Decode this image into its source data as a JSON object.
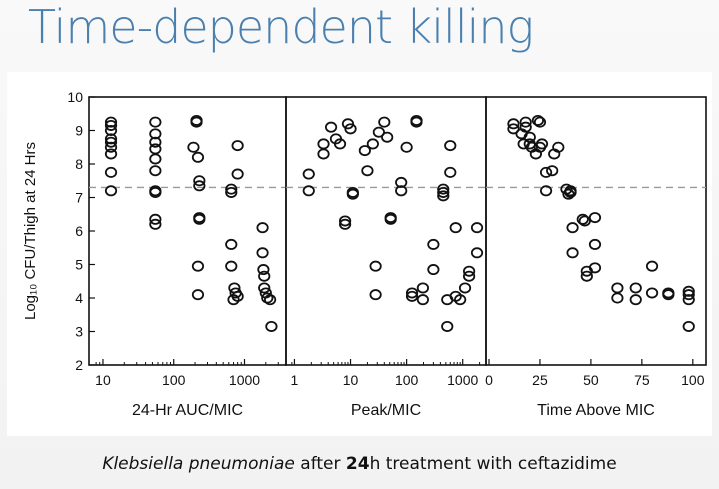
{
  "slide": {
    "title": "Time-dependent killing",
    "caption_organism": "Klebsiella pneumoniae",
    "caption_after": " after ",
    "caption_hours": "24",
    "caption_rest": "h treatment with ceftazidime"
  },
  "chart_data": {
    "type": "scatter",
    "ylabel": "Log₁₀ CFU/Thigh at 24 Hrs",
    "ylim": [
      2,
      10
    ],
    "yticks": [
      "2",
      "3",
      "4",
      "5",
      "6",
      "7",
      "8",
      "9",
      "10"
    ],
    "reference_line_y": 7.3,
    "reference_line_style": "dashed",
    "grid": false,
    "panels": [
      {
        "xlabel": "24-Hr AUC/MIC",
        "xscale": "log",
        "xlim": [
          7,
          3500
        ],
        "xticks": [
          "10",
          "100",
          "1000"
        ],
        "points": [
          [
            13,
            9.25
          ],
          [
            13,
            9.15
          ],
          [
            13,
            9.0
          ],
          [
            13,
            8.75
          ],
          [
            13,
            8.65
          ],
          [
            13,
            8.5
          ],
          [
            13,
            8.3
          ],
          [
            13,
            7.75
          ],
          [
            13,
            7.2
          ],
          [
            55,
            9.25
          ],
          [
            55,
            8.9
          ],
          [
            55,
            8.65
          ],
          [
            55,
            8.45
          ],
          [
            55,
            8.15
          ],
          [
            55,
            7.8
          ],
          [
            55,
            7.2
          ],
          [
            55,
            7.15
          ],
          [
            55,
            6.35
          ],
          [
            55,
            6.2
          ],
          [
            210,
            9.3
          ],
          [
            210,
            9.25
          ],
          [
            190,
            8.5
          ],
          [
            220,
            8.2
          ],
          [
            230,
            7.5
          ],
          [
            230,
            7.35
          ],
          [
            230,
            6.4
          ],
          [
            230,
            6.35
          ],
          [
            220,
            4.95
          ],
          [
            220,
            4.1
          ],
          [
            650,
            7.25
          ],
          [
            650,
            7.15
          ],
          [
            800,
            8.55
          ],
          [
            800,
            7.7
          ],
          [
            650,
            5.6
          ],
          [
            650,
            4.95
          ],
          [
            720,
            4.3
          ],
          [
            750,
            4.15
          ],
          [
            700,
            3.95
          ],
          [
            800,
            4.05
          ],
          [
            1800,
            6.1
          ],
          [
            1800,
            5.35
          ],
          [
            1850,
            4.85
          ],
          [
            1900,
            4.65
          ],
          [
            1900,
            4.3
          ],
          [
            2000,
            4.15
          ],
          [
            2100,
            4.0
          ],
          [
            2300,
            3.95
          ],
          [
            2400,
            3.15
          ]
        ]
      },
      {
        "xlabel": "Peak/MIC",
        "xscale": "log",
        "xlim": [
          0.8,
          2300
        ],
        "xticks": [
          "1",
          "10",
          "100",
          "1000"
        ],
        "points": [
          [
            1.8,
            7.7
          ],
          [
            1.8,
            7.2
          ],
          [
            3.3,
            8.6
          ],
          [
            3.3,
            8.3
          ],
          [
            4.5,
            9.1
          ],
          [
            5.5,
            8.75
          ],
          [
            6.5,
            8.6
          ],
          [
            8,
            6.3
          ],
          [
            8,
            6.2
          ],
          [
            9,
            9.2
          ],
          [
            10,
            9.05
          ],
          [
            11,
            7.15
          ],
          [
            11,
            7.1
          ],
          [
            18,
            8.4
          ],
          [
            20,
            7.8
          ],
          [
            25,
            8.6
          ],
          [
            32,
            8.95
          ],
          [
            40,
            9.25
          ],
          [
            45,
            8.8
          ],
          [
            28,
            4.95
          ],
          [
            28,
            4.1
          ],
          [
            52,
            6.4
          ],
          [
            52,
            6.35
          ],
          [
            100,
            8.5
          ],
          [
            80,
            7.45
          ],
          [
            80,
            7.2
          ],
          [
            150,
            9.3
          ],
          [
            150,
            9.25
          ],
          [
            125,
            4.15
          ],
          [
            125,
            4.05
          ],
          [
            195,
            4.3
          ],
          [
            195,
            3.95
          ],
          [
            300,
            5.6
          ],
          [
            300,
            4.85
          ],
          [
            450,
            7.25
          ],
          [
            450,
            7.15
          ],
          [
            450,
            7.05
          ],
          [
            600,
            8.55
          ],
          [
            600,
            7.75
          ],
          [
            530,
            3.95
          ],
          [
            530,
            3.15
          ],
          [
            750,
            6.1
          ],
          [
            750,
            4.05
          ],
          [
            900,
            3.95
          ],
          [
            1100,
            4.3
          ],
          [
            1300,
            4.65
          ],
          [
            1300,
            4.8
          ],
          [
            1800,
            6.1
          ],
          [
            1800,
            5.35
          ]
        ]
      },
      {
        "xlabel": "Time Above MIC",
        "xscale": "linear",
        "xlim": [
          0,
          105
        ],
        "xticks": [
          "0",
          "25",
          "50",
          "75",
          "100"
        ],
        "points": [
          [
            12,
            9.2
          ],
          [
            12,
            9.05
          ],
          [
            16,
            8.9
          ],
          [
            17,
            8.6
          ],
          [
            18,
            9.25
          ],
          [
            18,
            9.1
          ],
          [
            20,
            8.8
          ],
          [
            20,
            8.6
          ],
          [
            21,
            8.5
          ],
          [
            23,
            8.3
          ],
          [
            24,
            9.3
          ],
          [
            25,
            9.25
          ],
          [
            25,
            8.5
          ],
          [
            26,
            8.6
          ],
          [
            28,
            7.75
          ],
          [
            28,
            7.2
          ],
          [
            31,
            7.8
          ],
          [
            32,
            8.3
          ],
          [
            34,
            8.5
          ],
          [
            38,
            7.25
          ],
          [
            39,
            7.1
          ],
          [
            40,
            7.15
          ],
          [
            40,
            7.2
          ],
          [
            41,
            6.1
          ],
          [
            41,
            5.35
          ],
          [
            46,
            6.35
          ],
          [
            47,
            6.3
          ],
          [
            48,
            4.8
          ],
          [
            48,
            4.65
          ],
          [
            52,
            6.4
          ],
          [
            52,
            5.6
          ],
          [
            52,
            4.9
          ],
          [
            63,
            4.3
          ],
          [
            63,
            4.0
          ],
          [
            72,
            4.3
          ],
          [
            72,
            3.95
          ],
          [
            80,
            4.95
          ],
          [
            80,
            4.15
          ],
          [
            88,
            4.1
          ],
          [
            88,
            4.15
          ],
          [
            98,
            4.2
          ],
          [
            98,
            4.1
          ],
          [
            98,
            3.95
          ],
          [
            98,
            3.15
          ]
        ]
      }
    ]
  }
}
